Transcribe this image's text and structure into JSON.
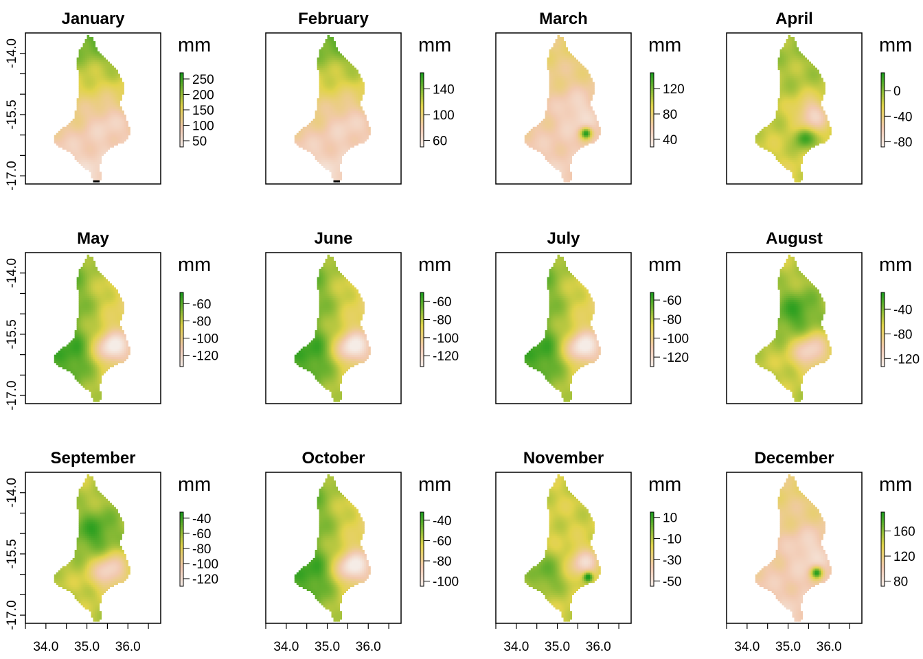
{
  "figure": {
    "unit_label": "mm"
  },
  "colors": {
    "dry": "#f2c9b0",
    "mid": "#e1d34a",
    "wet": "#1d9b1d",
    "palest": "#f5ece6",
    "frame": "#000000"
  },
  "chart_data": [
    {
      "type": "heatmap",
      "title": "January",
      "xlim": [
        33.5,
        36.8
      ],
      "ylim": [
        -17.2,
        -13.5
      ],
      "xticks": [
        34.0,
        35.0,
        36.0
      ],
      "yticks": [
        -14.0,
        -15.5,
        -17.0
      ],
      "xtick_labels": [
        "34.0",
        "35.0",
        "36.0"
      ],
      "ytick_labels": [
        "-14.0",
        "-15.5",
        "-17.0"
      ],
      "show_x_axis": false,
      "show_y_axis": true,
      "legend_title": "mm",
      "legend_range": [
        30,
        270
      ],
      "legend_ticks": [
        50,
        100,
        150,
        200,
        250
      ],
      "pattern": "north_wet_south_dry"
    },
    {
      "type": "heatmap",
      "title": "February",
      "xlim": [
        33.5,
        36.8
      ],
      "ylim": [
        -17.2,
        -13.5
      ],
      "xticks": [
        34.0,
        35.0,
        36.0
      ],
      "yticks": [
        -14.0,
        -15.5,
        -17.0
      ],
      "xtick_labels": [
        "34.0",
        "35.0",
        "36.0"
      ],
      "ytick_labels": [
        "-14.0",
        "-15.5",
        "-17.0"
      ],
      "show_x_axis": false,
      "show_y_axis": false,
      "legend_title": "mm",
      "legend_range": [
        50,
        165
      ],
      "legend_ticks": [
        60,
        100,
        140
      ],
      "pattern": "north_wet_south_dry"
    },
    {
      "type": "heatmap",
      "title": "March",
      "xlim": [
        33.5,
        36.8
      ],
      "ylim": [
        -17.2,
        -13.5
      ],
      "xticks": [
        34.0,
        35.0,
        36.0
      ],
      "yticks": [
        -14.0,
        -15.5,
        -17.0
      ],
      "xtick_labels": [
        "34.0",
        "35.0",
        "36.0"
      ],
      "ytick_labels": [
        "-14.0",
        "-15.5",
        "-17.0"
      ],
      "show_x_axis": false,
      "show_y_axis": false,
      "legend_title": "mm",
      "legend_range": [
        28,
        145
      ],
      "legend_ticks": [
        40,
        80,
        120
      ],
      "pattern": "mostly_dry_east_wet_spot"
    },
    {
      "type": "heatmap",
      "title": "April",
      "xlim": [
        33.5,
        36.8
      ],
      "ylim": [
        -17.2,
        -13.5
      ],
      "xticks": [
        34.0,
        35.0,
        36.0
      ],
      "yticks": [
        -14.0,
        -15.5,
        -17.0
      ],
      "xtick_labels": [
        "34.0",
        "35.0",
        "36.0"
      ],
      "ytick_labels": [
        "-14.0",
        "-15.5",
        "-17.0"
      ],
      "show_x_axis": false,
      "show_y_axis": false,
      "legend_title": "mm",
      "legend_range": [
        -88,
        28
      ],
      "legend_ticks": [
        -80,
        -40,
        0
      ],
      "pattern": "east_dry_south_wet"
    },
    {
      "type": "heatmap",
      "title": "May",
      "xlim": [
        33.5,
        36.8
      ],
      "ylim": [
        -17.2,
        -13.5
      ],
      "xticks": [
        34.0,
        35.0,
        36.0
      ],
      "yticks": [
        -14.0,
        -15.5,
        -17.0
      ],
      "xtick_labels": [
        "34.0",
        "35.0",
        "36.0"
      ],
      "ytick_labels": [
        "-14.0",
        "-15.5",
        "-17.0"
      ],
      "show_x_axis": false,
      "show_y_axis": true,
      "legend_title": "mm",
      "legend_range": [
        -133,
        -47
      ],
      "legend_ticks": [
        -120,
        -100,
        -80,
        -60
      ],
      "pattern": "west_wet_east_dry"
    },
    {
      "type": "heatmap",
      "title": "June",
      "xlim": [
        33.5,
        36.8
      ],
      "ylim": [
        -17.2,
        -13.5
      ],
      "xticks": [
        34.0,
        35.0,
        36.0
      ],
      "yticks": [
        -14.0,
        -15.5,
        -17.0
      ],
      "xtick_labels": [
        "34.0",
        "35.0",
        "36.0"
      ],
      "ytick_labels": [
        "-14.0",
        "-15.5",
        "-17.0"
      ],
      "show_x_axis": false,
      "show_y_axis": false,
      "legend_title": "mm",
      "legend_range": [
        -132,
        -50
      ],
      "legend_ticks": [
        -120,
        -100,
        -80,
        -60
      ],
      "pattern": "west_wet_east_dry"
    },
    {
      "type": "heatmap",
      "title": "July",
      "xlim": [
        33.5,
        36.8
      ],
      "ylim": [
        -17.2,
        -13.5
      ],
      "xticks": [
        34.0,
        35.0,
        36.0
      ],
      "yticks": [
        -14.0,
        -15.5,
        -17.0
      ],
      "xtick_labels": [
        "34.0",
        "35.0",
        "36.0"
      ],
      "ytick_labels": [
        "-14.0",
        "-15.5",
        "-17.0"
      ],
      "show_x_axis": false,
      "show_y_axis": false,
      "legend_title": "mm",
      "legend_range": [
        -130,
        -52
      ],
      "legend_ticks": [
        -120,
        -100,
        -80,
        -60
      ],
      "pattern": "west_wet_east_dry"
    },
    {
      "type": "heatmap",
      "title": "August",
      "xlim": [
        33.5,
        36.8
      ],
      "ylim": [
        -17.2,
        -13.5
      ],
      "xticks": [
        34.0,
        35.0,
        36.0
      ],
      "yticks": [
        -14.0,
        -15.5,
        -17.0
      ],
      "xtick_labels": [
        "34.0",
        "35.0",
        "36.0"
      ],
      "ytick_labels": [
        "-14.0",
        "-15.5",
        "-17.0"
      ],
      "show_x_axis": false,
      "show_y_axis": false,
      "legend_title": "mm",
      "legend_range": [
        -133,
        -13
      ],
      "legend_ticks": [
        -120,
        -80,
        -40
      ],
      "pattern": "central_wet_south_dry"
    },
    {
      "type": "heatmap",
      "title": "September",
      "xlim": [
        33.5,
        36.8
      ],
      "ylim": [
        -17.2,
        -13.5
      ],
      "xticks": [
        34.0,
        35.0,
        36.0
      ],
      "yticks": [
        -14.0,
        -15.5,
        -17.0
      ],
      "xtick_labels": [
        "34.0",
        "35.0",
        "36.0"
      ],
      "ytick_labels": [
        "-14.0",
        "-15.5",
        "-17.0"
      ],
      "show_x_axis": true,
      "show_y_axis": true,
      "legend_title": "mm",
      "legend_range": [
        -130,
        -32
      ],
      "legend_ticks": [
        -120,
        -100,
        -80,
        -60,
        -40
      ],
      "pattern": "central_wet_south_dry"
    },
    {
      "type": "heatmap",
      "title": "October",
      "xlim": [
        33.5,
        36.8
      ],
      "ylim": [
        -17.2,
        -13.5
      ],
      "xticks": [
        34.0,
        35.0,
        36.0
      ],
      "yticks": [
        -14.0,
        -15.5,
        -17.0
      ],
      "xtick_labels": [
        "34.0",
        "35.0",
        "36.0"
      ],
      "ytick_labels": [
        "-14.0",
        "-15.5",
        "-17.0"
      ],
      "show_x_axis": true,
      "show_y_axis": false,
      "legend_title": "mm",
      "legend_range": [
        -105,
        -32
      ],
      "legend_ticks": [
        -100,
        -80,
        -60,
        -40
      ],
      "pattern": "west_wet_east_dry"
    },
    {
      "type": "heatmap",
      "title": "November",
      "xlim": [
        33.5,
        36.8
      ],
      "ylim": [
        -17.2,
        -13.5
      ],
      "xticks": [
        34.0,
        35.0,
        36.0
      ],
      "yticks": [
        -14.0,
        -15.5,
        -17.0
      ],
      "xtick_labels": [
        "34.0",
        "35.0",
        "36.0"
      ],
      "ytick_labels": [
        "-14.0",
        "-15.5",
        "-17.0"
      ],
      "show_x_axis": true,
      "show_y_axis": false,
      "legend_title": "mm",
      "legend_range": [
        -55,
        15
      ],
      "legend_ticks": [
        -50,
        -30,
        -10,
        10
      ],
      "pattern": "mixed_southwest_wet"
    },
    {
      "type": "heatmap",
      "title": "December",
      "xlim": [
        33.5,
        36.8
      ],
      "ylim": [
        -17.2,
        -13.5
      ],
      "xticks": [
        34.0,
        35.0,
        36.0
      ],
      "yticks": [
        -14.0,
        -15.5,
        -17.0
      ],
      "xtick_labels": [
        "34.0",
        "35.0",
        "36.0"
      ],
      "ytick_labels": [
        "-14.0",
        "-15.5",
        "-17.0"
      ],
      "show_x_axis": true,
      "show_y_axis": false,
      "legend_title": "mm",
      "legend_range": [
        72,
        190
      ],
      "legend_ticks": [
        80,
        120,
        160
      ],
      "pattern": "mostly_dry_east_wet_spot"
    }
  ]
}
